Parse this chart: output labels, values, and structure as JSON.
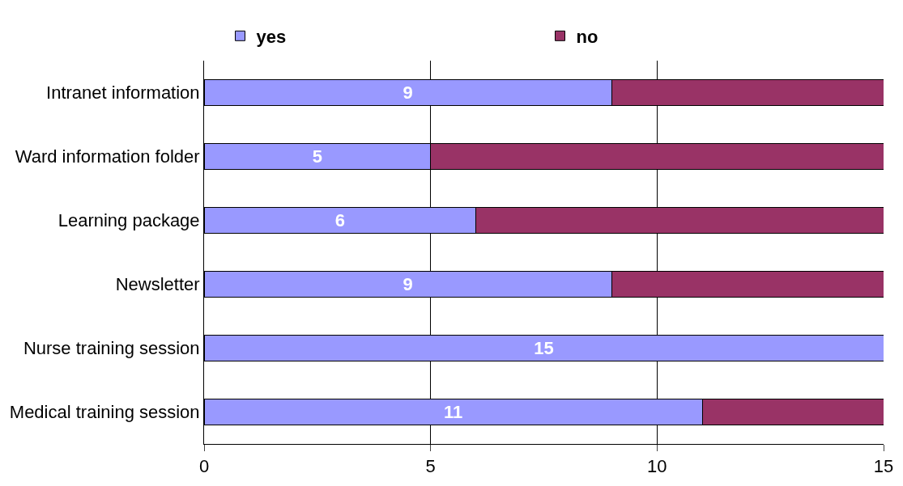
{
  "chart_data": {
    "type": "bar",
    "orientation": "horizontal",
    "stacked": true,
    "categories": [
      "Intranet information",
      "Ward information folder",
      "Learning package",
      "Newsletter",
      "Nurse training session",
      "Medical training session"
    ],
    "series": [
      {
        "name": "yes",
        "color": "#9999ff",
        "values": [
          9,
          5,
          6,
          9,
          15,
          11
        ],
        "value_labels": [
          "9",
          "5",
          "6",
          "9",
          "15",
          "11"
        ]
      },
      {
        "name": "no",
        "color": "#993366",
        "values": [
          6,
          10,
          9,
          6,
          null,
          4
        ]
      }
    ],
    "xlim": [
      0,
      15
    ],
    "xticks": [
      0,
      5,
      10,
      15
    ],
    "grid": "x",
    "legend": "top"
  }
}
